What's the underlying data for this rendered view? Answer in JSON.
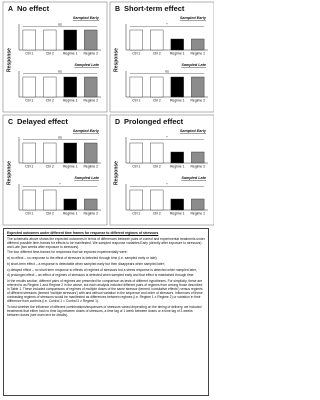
{
  "panels": [
    {
      "letter": "A",
      "title": "No effect",
      "y_label": "Response",
      "subpanels": [
        {
          "label": "Sampled Early",
          "categories": [
            "Ctrl 1",
            "Ctrl 2",
            "Regime 1",
            "Regime 2"
          ],
          "heights": [
            1,
            1,
            1,
            1
          ],
          "annotation": "ns"
        },
        {
          "label": "Sampled Late",
          "categories": [
            "Ctrl 1",
            "Ctrl 2",
            "Regime 1",
            "Regime 2"
          ],
          "heights": [
            1,
            1,
            1,
            1
          ],
          "annotation": "ns"
        }
      ]
    },
    {
      "letter": "B",
      "title": "Short-term effect",
      "y_label": "Response",
      "subpanels": [
        {
          "label": "Sampled Early",
          "categories": [
            "Ctrl 1",
            "Ctrl 2",
            "Regime 1",
            "Regime 2"
          ],
          "heights": [
            1,
            1,
            0.55,
            0.55
          ],
          "annotation": "*"
        },
        {
          "label": "Sampled Late",
          "categories": [
            "Ctrl 1",
            "Ctrl 2",
            "Regime 1",
            "Regime 2"
          ],
          "heights": [
            1,
            1,
            1,
            1
          ],
          "annotation": "ns"
        }
      ]
    },
    {
      "letter": "C",
      "title": "Delayed effect",
      "y_label": "Response",
      "subpanels": [
        {
          "label": "Sampled Early",
          "categories": [
            "Ctrl 1",
            "Ctrl 2",
            "Regime 1",
            "Regime 2"
          ],
          "heights": [
            1,
            1,
            1,
            1
          ],
          "annotation": "ns"
        },
        {
          "label": "Sampled Late",
          "categories": [
            "Ctrl 1",
            "Ctrl 2",
            "Regime 1",
            "Regime 2"
          ],
          "heights": [
            1,
            1,
            0.55,
            0.55
          ],
          "annotation": "*"
        }
      ]
    },
    {
      "letter": "D",
      "title": "Prolonged effect",
      "y_label": "Response",
      "subpanels": [
        {
          "label": "Sampled Early",
          "categories": [
            "Ctrl 1",
            "Ctrl 2",
            "Regime 1",
            "Regime 2"
          ],
          "heights": [
            1,
            1,
            0.55,
            0.55
          ],
          "annotation": "*"
        },
        {
          "label": "Sampled Late",
          "categories": [
            "Ctrl 1",
            "Ctrl 2",
            "Regime 1",
            "Regime 2"
          ],
          "heights": [
            1,
            1,
            0.55,
            0.55
          ],
          "annotation": "*"
        }
      ]
    }
  ],
  "bar_colors": [
    "#ffffff",
    "#ffffff",
    "#000000",
    "#8c8c8c"
  ],
  "note": {
    "title": "Expected outcomes under different time frames for response to different regimes of stressors",
    "paragraphs": [
      "The schematic above shows the expected outcomes in terms of differences between pairs of control and experimental treatments under different possible time-frames for effects to be manifested. We sampled response variables Early (directly after exposure to stressors) and Late (two weeks after exposure to stressors).",
      "The four different time-frames for responses that we explored experimentally were:",
      "a) no effect – no response to the effect of stressors is detected through time (i.e. sampled early or late);",
      "b) short-term effect – a response is detectable when sampled early but then disappears when sampled later;",
      "c) delayed effect – no short term response to effects of regimes of stressors but a stress response is detected when sampled later;",
      "d) prolonged effect – an effect of regimes of stressors is detected when sampled early and that effect is maintained through time.",
      "In the results section, different pairs of regimes are presented for comparison as tests of different hypotheses. For simplicity, these are referred to as Regime 1 and Regime 2 in the above, but each analysis included different pairs of regimes from among those described in Table 1. These included comparisons of regimes of multiple doses of the same stressor (termed 'cumulative effects') versus regimes of different stressors (termed 'multiple stressors') with and without variation in the sequence and order of stressors. Influences of these contrasting regimes of stressors would be manifested as differences between regimes (i.e. Regime 1 ≠ Regime 2) or variation in their difference from controls (i.e. Control 1 = Control 2 ≠ Regime 1).",
      "To test whether the influence of different combinations/sequences of stressors varied depending on the timing of delivery, we included treatments that either had no time lag between doses of stressors, a time lag of 1 week between doses or a time lag of 3 weeks between doses (see main text for details)."
    ]
  }
}
